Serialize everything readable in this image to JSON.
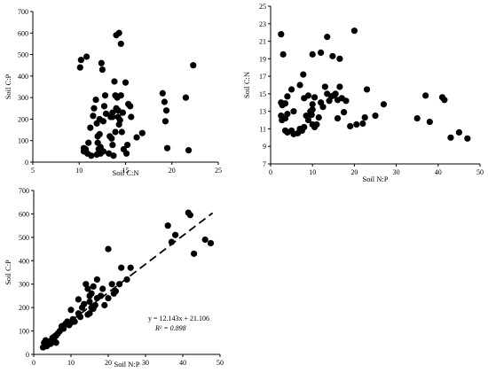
{
  "chart_data": [
    {
      "type": "scatter",
      "xlabel": "Soil C:N",
      "ylabel": "Soil C:P",
      "xlim": [
        5,
        25
      ],
      "ylim": [
        0,
        700
      ],
      "xticks": [
        "5",
        "10",
        "15",
        "20",
        "25"
      ],
      "yticks": [
        "0",
        "100",
        "200",
        "300",
        "400",
        "500",
        "600",
        "700"
      ],
      "points": [
        [
          10.2,
          475
        ],
        [
          10.1,
          440
        ],
        [
          10.8,
          490
        ],
        [
          10.5,
          65
        ],
        [
          10.5,
          50
        ],
        [
          10.7,
          60
        ],
        [
          10.9,
          40
        ],
        [
          11.0,
          90
        ],
        [
          11.3,
          30
        ],
        [
          11.2,
          160
        ],
        [
          11.5,
          215
        ],
        [
          11.6,
          250
        ],
        [
          11.8,
          290
        ],
        [
          11.9,
          180
        ],
        [
          12.0,
          120
        ],
        [
          12.0,
          90
        ],
        [
          12.1,
          60
        ],
        [
          12.2,
          130
        ],
        [
          12.3,
          70
        ],
        [
          12.4,
          460
        ],
        [
          12.5,
          430
        ],
        [
          12.6,
          50
        ],
        [
          12.7,
          260
        ],
        [
          12.8,
          310
        ],
        [
          12.9,
          225
        ],
        [
          12.2,
          200
        ],
        [
          12.6,
          190
        ],
        [
          11.9,
          35
        ],
        [
          12.3,
          40
        ],
        [
          13.2,
          40
        ],
        [
          13.3,
          120
        ],
        [
          13.4,
          210
        ],
        [
          13.5,
          110
        ],
        [
          13.6,
          80
        ],
        [
          13.6,
          230
        ],
        [
          13.7,
          30
        ],
        [
          13.8,
          375
        ],
        [
          13.9,
          310
        ],
        [
          14.0,
          590
        ],
        [
          14.0,
          250
        ],
        [
          14.2,
          240
        ],
        [
          14.3,
          600
        ],
        [
          14.3,
          175
        ],
        [
          14.5,
          550
        ],
        [
          14.5,
          310
        ],
        [
          14.2,
          210
        ],
        [
          14.4,
          195
        ],
        [
          14.6,
          140
        ],
        [
          14.7,
          230
        ],
        [
          14.8,
          60
        ],
        [
          15.0,
          370
        ],
        [
          15.1,
          40
        ],
        [
          15.2,
          80
        ],
        [
          15.3,
          270
        ],
        [
          15.5,
          260
        ],
        [
          15.6,
          210
        ],
        [
          16.2,
          115
        ],
        [
          16.8,
          135
        ],
        [
          14.1,
          300
        ],
        [
          13.9,
          140
        ],
        [
          13.6,
          210
        ],
        [
          19.0,
          320
        ],
        [
          19.2,
          280
        ],
        [
          19.4,
          240
        ],
        [
          19.3,
          190
        ],
        [
          19.5,
          65
        ],
        [
          21.5,
          300
        ],
        [
          21.8,
          55
        ],
        [
          22.3,
          450
        ]
      ]
    },
    {
      "type": "scatter",
      "xlabel": "Soil N:P",
      "ylabel": "Soil C:N",
      "xlim": [
        0,
        50
      ],
      "ylim": [
        7,
        25
      ],
      "xticks": [
        "0",
        "10",
        "20",
        "30",
        "40",
        "50"
      ],
      "yticks": [
        "7",
        "9",
        "11",
        "13",
        "15",
        "17",
        "19",
        "21",
        "23",
        "25"
      ],
      "points": [
        [
          2.5,
          21.8
        ],
        [
          3.0,
          19.5
        ],
        [
          2.5,
          14.0
        ],
        [
          2.8,
          13.7
        ],
        [
          3.5,
          13.9
        ],
        [
          4.0,
          14.7
        ],
        [
          5.0,
          15.5
        ],
        [
          2.5,
          12.5
        ],
        [
          2.7,
          12.0
        ],
        [
          3.5,
          12.2
        ],
        [
          4.0,
          12.7
        ],
        [
          5.5,
          13.0
        ],
        [
          3.5,
          10.8
        ],
        [
          4.0,
          10.6
        ],
        [
          5.0,
          10.8
        ],
        [
          5.5,
          10.4
        ],
        [
          6.5,
          10.5
        ],
        [
          7.0,
          11.0
        ],
        [
          7.5,
          10.8
        ],
        [
          8.0,
          11.2
        ],
        [
          9.0,
          12.0
        ],
        [
          7.0,
          16.0
        ],
        [
          7.8,
          17.2
        ],
        [
          8.0,
          14.5
        ],
        [
          9.0,
          14.8
        ],
        [
          9.5,
          13.0
        ],
        [
          10.0,
          13.2
        ],
        [
          10.0,
          13.8
        ],
        [
          9.8,
          12.6
        ],
        [
          10.5,
          14.6
        ],
        [
          10.0,
          11.5
        ],
        [
          10.5,
          11.2
        ],
        [
          11.0,
          11.5
        ],
        [
          11.5,
          12.3
        ],
        [
          12.0,
          14.0
        ],
        [
          12.5,
          13.5
        ],
        [
          13.0,
          15.8
        ],
        [
          13.5,
          15.0
        ],
        [
          14.0,
          14.2
        ],
        [
          14.5,
          14.7
        ],
        [
          15.0,
          14.8
        ],
        [
          15.5,
          15.0
        ],
        [
          16.0,
          14.3
        ],
        [
          16.5,
          15.8
        ],
        [
          17.0,
          14.5
        ],
        [
          17.5,
          12.9
        ],
        [
          16.0,
          12.2
        ],
        [
          18.0,
          14.2
        ],
        [
          19.0,
          11.3
        ],
        [
          20.5,
          11.5
        ],
        [
          22.0,
          11.6
        ],
        [
          22.5,
          12.3
        ],
        [
          23.0,
          15.5
        ],
        [
          25.0,
          12.5
        ],
        [
          27.0,
          13.8
        ],
        [
          10.0,
          19.5
        ],
        [
          12.0,
          19.7
        ],
        [
          13.5,
          21.5
        ],
        [
          14.8,
          19.3
        ],
        [
          16.5,
          19.0
        ],
        [
          20.0,
          22.2
        ],
        [
          8.5,
          12.5
        ],
        [
          35.0,
          12.2
        ],
        [
          37.0,
          14.8
        ],
        [
          38.0,
          11.8
        ],
        [
          41.0,
          14.6
        ],
        [
          41.5,
          14.3
        ],
        [
          43.0,
          10.0
        ],
        [
          45.0,
          10.6
        ],
        [
          47.0,
          9.9
        ]
      ]
    },
    {
      "type": "scatter",
      "xlabel": "Soil N:P",
      "ylabel": "Soil C:P",
      "xlim": [
        0,
        50
      ],
      "ylim": [
        0,
        700
      ],
      "xticks": [
        "0",
        "10",
        "20",
        "30",
        "40",
        "50"
      ],
      "yticks": [
        "0",
        "100",
        "200",
        "300",
        "400",
        "500",
        "600",
        "700"
      ],
      "trendline": {
        "slope": 12.143,
        "intercept": 21.106,
        "x_range": [
          2,
          48
        ]
      },
      "equation": "y = 12.143x + 21.106",
      "r2": "R² = 0.898",
      "points": [
        [
          2.5,
          30
        ],
        [
          2.8,
          50
        ],
        [
          3.0,
          40
        ],
        [
          3.2,
          60
        ],
        [
          3.5,
          35
        ],
        [
          4.0,
          55
        ],
        [
          4.5,
          45
        ],
        [
          5.0,
          70
        ],
        [
          5.5,
          60
        ],
        [
          6.0,
          80
        ],
        [
          6.0,
          50
        ],
        [
          6.5,
          90
        ],
        [
          7.0,
          100
        ],
        [
          7.5,
          120
        ],
        [
          8.0,
          110
        ],
        [
          8.5,
          130
        ],
        [
          9.0,
          140
        ],
        [
          9.5,
          125
        ],
        [
          10.0,
          190
        ],
        [
          10.0,
          135
        ],
        [
          10.5,
          150
        ],
        [
          11.0,
          140
        ],
        [
          12.0,
          175
        ],
        [
          12.5,
          160
        ],
        [
          12.0,
          235
        ],
        [
          13.0,
          200
        ],
        [
          13.5,
          215
        ],
        [
          14.0,
          300
        ],
        [
          14.5,
          280
        ],
        [
          15.0,
          250
        ],
        [
          15.0,
          225
        ],
        [
          15.5,
          260
        ],
        [
          15.0,
          175
        ],
        [
          16.0,
          195
        ],
        [
          16.5,
          210
        ],
        [
          16.0,
          290
        ],
        [
          17.0,
          320
        ],
        [
          17.0,
          240
        ],
        [
          18.0,
          250
        ],
        [
          18.5,
          280
        ],
        [
          19.0,
          210
        ],
        [
          20.0,
          450
        ],
        [
          20.0,
          240
        ],
        [
          21.0,
          300
        ],
        [
          21.5,
          260
        ],
        [
          22.0,
          270
        ],
        [
          23.0,
          300
        ],
        [
          23.5,
          370
        ],
        [
          25.0,
          320
        ],
        [
          26.0,
          370
        ],
        [
          36.0,
          550
        ],
        [
          37.0,
          480
        ],
        [
          38.0,
          510
        ],
        [
          41.5,
          605
        ],
        [
          42.0,
          595
        ],
        [
          43.0,
          430
        ],
        [
          46.0,
          490
        ],
        [
          47.5,
          475
        ],
        [
          14.5,
          170
        ],
        [
          15.5,
          200
        ]
      ]
    }
  ]
}
